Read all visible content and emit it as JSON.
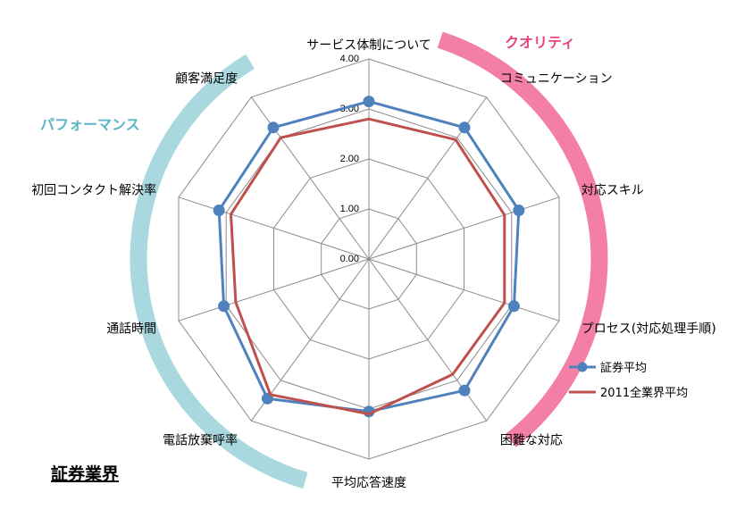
{
  "chart_data": {
    "type": "radar",
    "axes": [
      "サービス体制について",
      "コミュニケーション",
      "対応スキル",
      "プロセス(対応処理手順)",
      "困難な対応",
      "平均応答速度",
      "電話放棄呼率",
      "通話時間",
      "初回コンタクト解決率",
      "顧客満足度"
    ],
    "ticks": [
      "0.00",
      "1.00",
      "2.00",
      "3.00",
      "4.00"
    ],
    "rlim": [
      0,
      4
    ],
    "series": [
      {
        "name": "証券平均",
        "color": "#4f81bd",
        "markers": true,
        "values": [
          3.15,
          3.25,
          3.15,
          3.05,
          3.25,
          3.05,
          3.45,
          3.05,
          3.15,
          3.25
        ]
      },
      {
        "name": "2011全業界平均",
        "color": "#c0504d",
        "markers": false,
        "values": [
          2.8,
          2.95,
          2.85,
          2.85,
          2.85,
          3.1,
          3.35,
          2.8,
          2.9,
          3.0
        ]
      }
    ],
    "groups": [
      {
        "label": "クオリティ",
        "color": "#f47fa6",
        "text_color": "#e8457c"
      },
      {
        "label": "パフォーマンス",
        "color": "#a9d9df",
        "text_color": "#5ab6c6"
      }
    ],
    "grid": true,
    "legend_position": "right"
  },
  "sector_title": "証券業界"
}
